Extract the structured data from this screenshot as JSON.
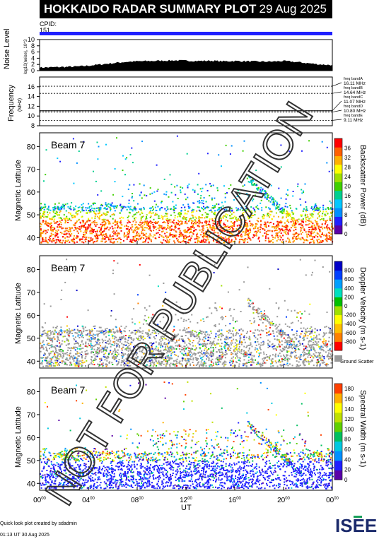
{
  "header": {
    "title": "HOKKAIDO RADAR SUMMARY PLOT",
    "date": "29 Aug 2025"
  },
  "cpid": {
    "label": "CPID:",
    "value": "151"
  },
  "footer": {
    "line1": "Quick look plot created by sdadmin",
    "line2": "01:13 UT 30 Aug 2025",
    "logo": "ISEE"
  },
  "watermark": "NOT FOR PUBLICATION",
  "chart_data": [
    {
      "type": "area",
      "ylabel": "Noise Level",
      "ylabel_sub": "log10(noise), 10^3",
      "ylim": [
        0,
        10
      ],
      "yticks": [
        0,
        2,
        4,
        6,
        8,
        10
      ],
      "x_hours": [
        0,
        1,
        2,
        3,
        4,
        5,
        6,
        7,
        8,
        9,
        10,
        11,
        12,
        13,
        14,
        15,
        16,
        17,
        18,
        19,
        20,
        21,
        22,
        23,
        24
      ],
      "values": [
        1.0,
        1.1,
        1.2,
        1.3,
        1.6,
        2.0,
        2.4,
        2.8,
        3.0,
        3.1,
        3.2,
        3.3,
        3.2,
        3.1,
        3.2,
        3.0,
        3.1,
        3.0,
        2.9,
        2.9,
        3.1,
        2.8,
        2.4,
        2.0,
        1.8
      ]
    },
    {
      "type": "line",
      "ylabel": "Frequency",
      "ylabel_sub": "(MHz)",
      "ylim": [
        8,
        18
      ],
      "yticks": [
        8,
        10,
        12,
        14,
        16
      ],
      "bands": [
        {
          "name": "freq bandA",
          "freq": "16.11 MHz",
          "y": 16.11
        },
        {
          "name": "freq bandB",
          "freq": "14.64 MHz",
          "y": 14.64
        },
        {
          "name": "freq bandC",
          "freq": "11.07 MHz",
          "y": 11.07
        },
        {
          "name": "freq bandD",
          "freq": "10.80 MHz",
          "y": 10.8
        },
        {
          "name": "freq bandE",
          "freq": "9.11 MHz",
          "y": 9.11
        }
      ]
    },
    {
      "type": "heatmap",
      "title": "Beam  7",
      "ylabel": "Magnetic Latitude",
      "ylim": [
        37,
        86
      ],
      "yticks": [
        40,
        50,
        60,
        70,
        80
      ],
      "colorbar": {
        "label": "Backscatter Power (dB)",
        "ticks": [
          0,
          4,
          8,
          12,
          16,
          20,
          24,
          28,
          32,
          36
        ],
        "range": [
          0,
          40
        ]
      }
    },
    {
      "type": "heatmap",
      "title": "Beam  7",
      "ylabel": "Magnetic Latitude",
      "ylim": [
        37,
        86
      ],
      "yticks": [
        40,
        50,
        60,
        70,
        80
      ],
      "colorbar": {
        "label": "Doppler Velocity (m s-1)",
        "ticks": [
          800,
          600,
          400,
          200,
          0,
          -200,
          -400,
          -600,
          -800
        ],
        "range": [
          -1000,
          1000
        ],
        "ground": "Ground Scatter"
      }
    },
    {
      "type": "heatmap",
      "title": "Beam  7",
      "ylabel": "Magnetic Latitude",
      "ylim": [
        37,
        86
      ],
      "yticks": [
        40,
        50,
        60,
        70,
        80
      ],
      "colorbar": {
        "label": "Spectral Width (m s-1)",
        "ticks": [
          0,
          20,
          40,
          60,
          80,
          100,
          120,
          140,
          160,
          180
        ],
        "range": [
          0,
          190
        ]
      }
    }
  ],
  "xaxis": {
    "label": "UT",
    "ticks": [
      "00",
      "04",
      "08",
      "12",
      "16",
      "20",
      "00"
    ],
    "sup": "00",
    "range": [
      0,
      24
    ]
  }
}
